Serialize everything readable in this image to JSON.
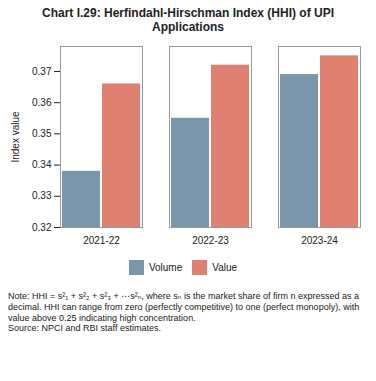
{
  "chart_data": {
    "type": "bar",
    "title": "Chart I.29: Herfindahl-Hirschman Index (HHI) of UPI Applications",
    "categories": [
      "2021-22",
      "2022-23",
      "2023-24"
    ],
    "series": [
      {
        "name": "Volume",
        "color": "#7a96aa",
        "values": [
          0.338,
          0.355,
          0.369
        ]
      },
      {
        "name": "Value",
        "color": "#e08070",
        "values": [
          0.366,
          0.372,
          0.375
        ]
      }
    ],
    "y_label": "Index value",
    "ylim": [
      0.32,
      0.378
    ],
    "yticks": [
      0.32,
      0.33,
      0.34,
      0.35,
      0.36,
      0.37
    ],
    "legend": "bottom",
    "annotations": [
      "Note: HHI = s²₁ + s²₂ + s²₃ + ⋯s²ₙ, where sₙ is the market share of firm n expressed as a decimal. HHI can range from zero (perfectly competitive) to one (perfect monopoly), with value above 0.25 indicating high concentration.",
      "Source: NPCI and RBI staff estimates."
    ]
  }
}
